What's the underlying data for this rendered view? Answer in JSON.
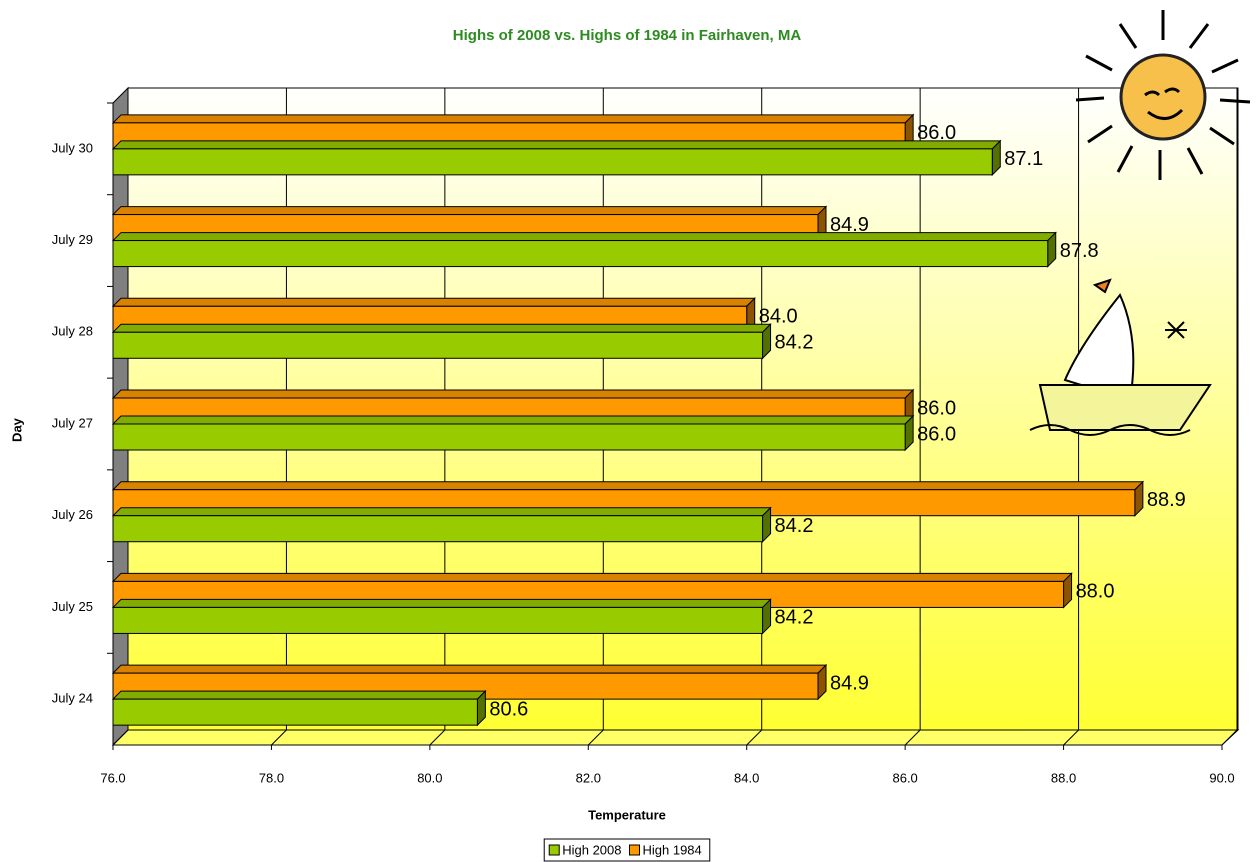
{
  "chart_data": {
    "type": "bar3d-horizontal",
    "title": "Highs of 2008 vs. Highs of 1984 in Fairhaven, MA",
    "x_label": "Temperature",
    "y_label": "Day",
    "categories": [
      "July 24",
      "July 25",
      "July 26",
      "July 27",
      "July 28",
      "July 29",
      "July 30"
    ],
    "series": [
      {
        "name": "High 2008",
        "color": "#99cc00",
        "values": [
          80.6,
          84.2,
          84.2,
          86.0,
          84.2,
          87.8,
          87.1
        ],
        "value_labels": [
          "80.6",
          "84.2",
          "84.2",
          "86.0",
          "84.2",
          "87.8",
          "87.1"
        ]
      },
      {
        "name": "High 1984",
        "color": "#ff9900",
        "values": [
          84.9,
          88.0,
          88.9,
          86.0,
          84.0,
          84.9,
          86.0
        ],
        "value_labels": [
          "84.9",
          "88.0",
          "88.9",
          "86.0",
          "84.0",
          "84.9",
          "86.0"
        ]
      }
    ],
    "xlim": [
      76,
      90
    ],
    "xticks": [
      {
        "value": 76,
        "label": "76.0"
      },
      {
        "value": 78,
        "label": "78.0"
      },
      {
        "value": 80,
        "label": "80.0"
      },
      {
        "value": 82,
        "label": "82.0"
      },
      {
        "value": 84,
        "label": "84.0"
      },
      {
        "value": 86,
        "label": "86.0"
      },
      {
        "value": 88,
        "label": "88.0"
      },
      {
        "value": 90,
        "label": "90.0"
      }
    ],
    "grid": true,
    "legend": "bottom"
  }
}
